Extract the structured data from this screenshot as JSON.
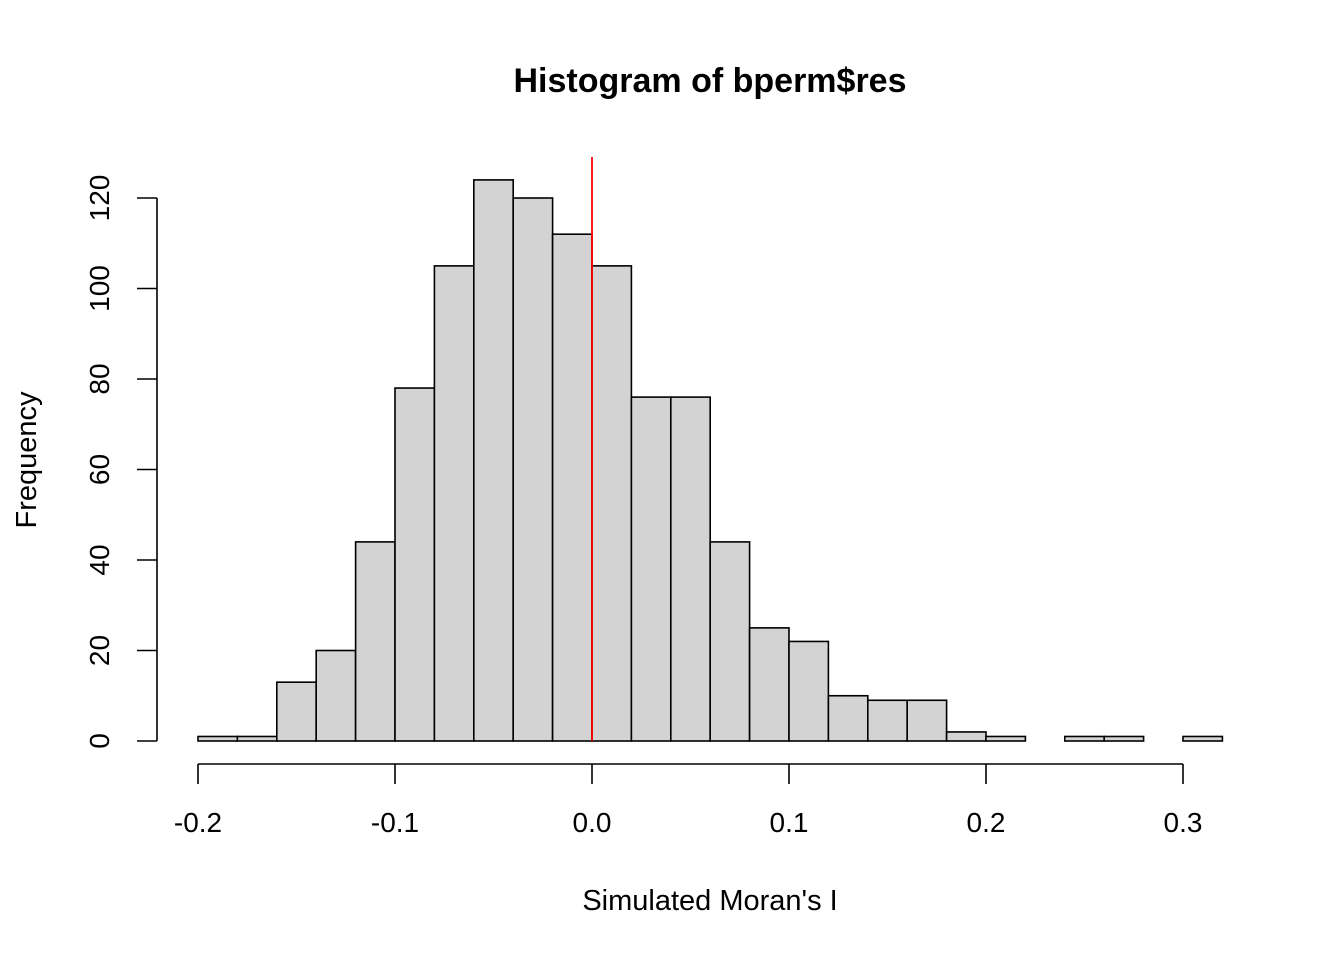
{
  "chart_data": {
    "type": "bar",
    "title": "Histogram of bperm$res",
    "xlabel": "Simulated Moran's I",
    "ylabel": "Frequency",
    "bins": [
      {
        "start": -0.2,
        "end": -0.18,
        "count": 1
      },
      {
        "start": -0.18,
        "end": -0.16,
        "count": 1
      },
      {
        "start": -0.16,
        "end": -0.14,
        "count": 13
      },
      {
        "start": -0.14,
        "end": -0.12,
        "count": 20
      },
      {
        "start": -0.12,
        "end": -0.1,
        "count": 44
      },
      {
        "start": -0.1,
        "end": -0.08,
        "count": 78
      },
      {
        "start": -0.08,
        "end": -0.06,
        "count": 105
      },
      {
        "start": -0.06,
        "end": -0.04,
        "count": 124
      },
      {
        "start": -0.04,
        "end": -0.02,
        "count": 120
      },
      {
        "start": -0.02,
        "end": 0.0,
        "count": 112
      },
      {
        "start": 0.0,
        "end": 0.02,
        "count": 105
      },
      {
        "start": 0.02,
        "end": 0.04,
        "count": 76
      },
      {
        "start": 0.04,
        "end": 0.06,
        "count": 76
      },
      {
        "start": 0.06,
        "end": 0.08,
        "count": 44
      },
      {
        "start": 0.08,
        "end": 0.1,
        "count": 25
      },
      {
        "start": 0.1,
        "end": 0.12,
        "count": 22
      },
      {
        "start": 0.12,
        "end": 0.14,
        "count": 10
      },
      {
        "start": 0.14,
        "end": 0.16,
        "count": 9
      },
      {
        "start": 0.16,
        "end": 0.18,
        "count": 9
      },
      {
        "start": 0.18,
        "end": 0.2,
        "count": 2
      },
      {
        "start": 0.2,
        "end": 0.22,
        "count": 1
      },
      {
        "start": 0.22,
        "end": 0.24,
        "count": 0
      },
      {
        "start": 0.24,
        "end": 0.26,
        "count": 1
      },
      {
        "start": 0.26,
        "end": 0.28,
        "count": 1
      },
      {
        "start": 0.28,
        "end": 0.3,
        "count": 0
      },
      {
        "start": 0.3,
        "end": 0.32,
        "count": 1
      }
    ],
    "x_ticks": [
      {
        "value": -0.2,
        "label": "-0.2"
      },
      {
        "value": -0.1,
        "label": "-0.1"
      },
      {
        "value": 0.0,
        "label": "0.0"
      },
      {
        "value": 0.1,
        "label": "0.1"
      },
      {
        "value": 0.2,
        "label": "0.2"
      },
      {
        "value": 0.3,
        "label": "0.3"
      }
    ],
    "y_ticks": [
      {
        "value": 0,
        "label": "0"
      },
      {
        "value": 20,
        "label": "20"
      },
      {
        "value": 40,
        "label": "40"
      },
      {
        "value": 60,
        "label": "60"
      },
      {
        "value": 80,
        "label": "80"
      },
      {
        "value": 100,
        "label": "100"
      },
      {
        "value": 120,
        "label": "120"
      }
    ],
    "xlim": [
      -0.2,
      0.32
    ],
    "ylim": [
      0,
      120
    ],
    "reference_line": {
      "x": 0.0,
      "color": "#ff0000"
    },
    "bar_fill": "#d3d3d3",
    "bar_stroke": "#000000",
    "grid": false,
    "legend": "none"
  }
}
